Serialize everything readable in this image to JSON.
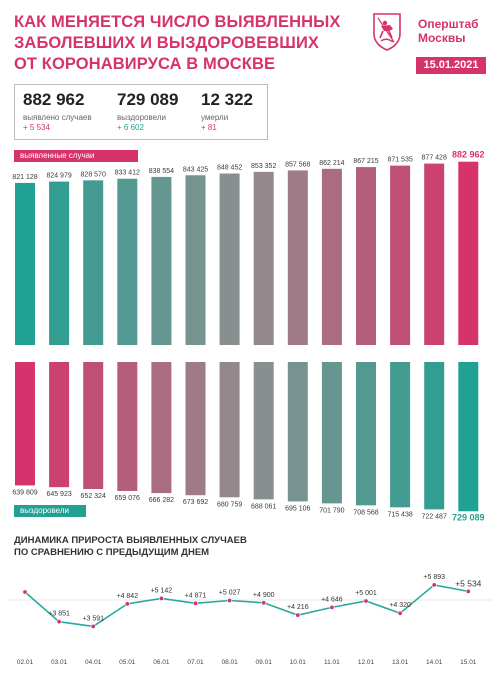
{
  "header": {
    "title_lines": [
      "КАК МЕНЯЕТСЯ ЧИСЛО ВЫЯВЛЕННЫХ",
      "ЗАБОЛЕВШИХ И ВЫЗДОРОВЕВШИХ",
      "ОТ КОРОНАВИРУСА В МОСКВЕ"
    ],
    "brand_lines": [
      "Оперштаб",
      "Москвы"
    ],
    "date": "15.01.2021",
    "logo_icon": "moscow-coat-of-arms-icon"
  },
  "stats": [
    {
      "value": "882 962",
      "label": "выявлено случаев",
      "delta": "+ 5 534"
    },
    {
      "value": "729 089",
      "label": "выздоровели",
      "delta": "+ 6 602"
    },
    {
      "value": "12 322",
      "label": "умерли",
      "delta": "+ 81"
    }
  ],
  "colors": {
    "accent": "#d6336c",
    "teal": "#21a193",
    "gray": "#8f8f8f"
  },
  "chart_data": [
    {
      "type": "bar",
      "legend": "выявленные случаи",
      "categories": [
        "02.01",
        "03.01",
        "04.01",
        "05.01",
        "06.01",
        "07.01",
        "08.01",
        "09.01",
        "10.01",
        "11.01",
        "12.01",
        "13.01",
        "14.01",
        "15.01"
      ],
      "values": [
        821128,
        824979,
        828570,
        833412,
        838554,
        843425,
        848452,
        853352,
        857568,
        862214,
        867215,
        871535,
        877428,
        882962
      ],
      "value_labels": [
        "821 128",
        "824 979",
        "828 570",
        "833 412",
        "838 554",
        "843 425",
        "848 452",
        "853 352",
        "857 568",
        "862 214",
        "867 215",
        "871 535",
        "877 428",
        "882 962"
      ]
    },
    {
      "type": "bar",
      "legend": "выздоровели",
      "categories": [
        "02.01",
        "03.01",
        "04.01",
        "05.01",
        "06.01",
        "07.01",
        "08.01",
        "09.01",
        "10.01",
        "11.01",
        "12.01",
        "13.01",
        "14.01",
        "15.01"
      ],
      "values": [
        639809,
        645923,
        652324,
        659076,
        666282,
        673692,
        680759,
        688061,
        695106,
        701790,
        708568,
        715438,
        722487,
        729089
      ],
      "value_labels": [
        "639 809",
        "645 923",
        "652 324",
        "659 076",
        "666 282",
        "673 692",
        "680 759",
        "688 061",
        "695 106",
        "701 790",
        "708 568",
        "715 438",
        "722 487",
        "729 089"
      ]
    },
    {
      "type": "line",
      "title_lines": [
        "ДИНАМИКА ПРИРОСТА ВЫЯВЛЕННЫХ СЛУЧАЕВ",
        "ПО СРАВНЕНИЮ С ПРЕДЫДУЩИМ ДНЕМ"
      ],
      "categories": [
        "02.01",
        "03.01",
        "04.01",
        "05.01",
        "06.01",
        "07.01",
        "08.01",
        "09.01",
        "10.01",
        "11.01",
        "12.01",
        "13.01",
        "14.01",
        "15.01"
      ],
      "values": [
        5500,
        3851,
        3591,
        4842,
        5142,
        4871,
        5027,
        4900,
        4216,
        4646,
        5001,
        4320,
        5893,
        5534
      ],
      "value_labels": [
        "",
        "+3 851",
        "+3 591",
        "+4 842",
        "+5 142",
        "+4 871",
        "+5 027",
        "+4 900",
        "+4 216",
        "+4 646",
        "+5 001",
        "+4 320",
        "+5 893",
        "+5 534"
      ]
    }
  ]
}
